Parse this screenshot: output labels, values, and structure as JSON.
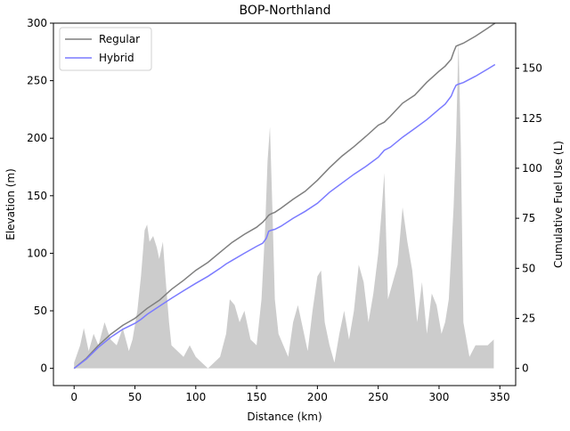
{
  "chart_data": {
    "type": "line",
    "title": "BOP-Northland",
    "xlabel": "Distance (km)",
    "ylabel": "Elevation (m)",
    "y2label": "Cumulative Fuel Use (L)",
    "xlim": [
      -17,
      363
    ],
    "ylim": [
      -15,
      300
    ],
    "y2lim": [
      -8.6,
      172.5
    ],
    "xticks": [
      0,
      50,
      100,
      150,
      200,
      250,
      300,
      350
    ],
    "yticks": [
      0,
      50,
      100,
      150,
      200,
      250,
      300
    ],
    "y2ticks": [
      0,
      25,
      50,
      75,
      100,
      125,
      150
    ],
    "grid": false,
    "legend_position": "top-left",
    "elevation": {
      "color": "#cccccc",
      "x": [
        0,
        5,
        8,
        12,
        16,
        20,
        25,
        30,
        35,
        40,
        45,
        48,
        52,
        55,
        58,
        60,
        62,
        65,
        68,
        70,
        73,
        75,
        78,
        80,
        85,
        90,
        95,
        100,
        105,
        110,
        115,
        120,
        125,
        128,
        132,
        136,
        140,
        145,
        150,
        154,
        157,
        159,
        161,
        163,
        165,
        168,
        172,
        176,
        180,
        184,
        188,
        192,
        196,
        200,
        203,
        206,
        210,
        214,
        218,
        222,
        226,
        230,
        234,
        238,
        242,
        246,
        250,
        253,
        255,
        258,
        262,
        266,
        270,
        274,
        278,
        282,
        286,
        290,
        294,
        298,
        302,
        305,
        308,
        310,
        312,
        314,
        316,
        318,
        320,
        325,
        330,
        335,
        340,
        345
      ],
      "values": [
        5,
        20,
        35,
        15,
        30,
        20,
        40,
        25,
        20,
        35,
        15,
        25,
        50,
        80,
        120,
        125,
        110,
        115,
        105,
        95,
        110,
        80,
        40,
        20,
        15,
        10,
        20,
        10,
        5,
        0,
        5,
        10,
        30,
        60,
        55,
        40,
        50,
        25,
        20,
        60,
        120,
        180,
        210,
        140,
        60,
        30,
        20,
        10,
        40,
        55,
        35,
        15,
        50,
        80,
        85,
        40,
        20,
        5,
        30,
        50,
        25,
        50,
        90,
        75,
        40,
        65,
        100,
        140,
        170,
        60,
        75,
        90,
        140,
        110,
        85,
        40,
        75,
        30,
        65,
        55,
        30,
        40,
        60,
        100,
        140,
        200,
        285,
        190,
        40,
        10,
        20,
        20,
        20,
        25
      ]
    },
    "x": [
      0,
      10,
      20,
      30,
      40,
      50,
      55,
      60,
      70,
      80,
      90,
      100,
      110,
      120,
      125,
      130,
      140,
      150,
      155,
      158,
      160,
      162,
      165,
      170,
      180,
      190,
      200,
      210,
      220,
      230,
      240,
      250,
      255,
      260,
      270,
      280,
      290,
      300,
      305,
      310,
      312,
      314,
      316,
      320,
      330,
      340,
      346
    ],
    "series": [
      {
        "name": "Regular",
        "color": "#7f7f7f",
        "values": [
          0,
          5,
          11.5,
          17,
          21.5,
          25,
          27.5,
          30,
          34,
          39.5,
          44,
          49,
          53,
          58,
          60.5,
          63,
          67,
          70.5,
          73,
          75,
          76.5,
          77.3,
          78,
          80,
          84.5,
          88.5,
          94,
          100.3,
          106,
          110.8,
          116,
          121.5,
          123,
          126,
          132.5,
          136.5,
          143,
          148.5,
          151,
          154.5,
          158,
          161,
          161.5,
          162.5,
          166,
          170,
          172.5
        ]
      },
      {
        "name": "Hybrid",
        "color": "#7b7bff",
        "values": [
          0,
          4.6,
          10.5,
          15.5,
          19.5,
          22.5,
          24.5,
          27,
          31,
          35,
          38.8,
          42.5,
          46,
          50,
          52.2,
          54,
          57.5,
          61,
          62.5,
          65,
          68.5,
          69,
          69.5,
          71,
          75,
          78.5,
          82.5,
          88,
          92.5,
          97,
          101,
          105.5,
          109,
          110.5,
          115.5,
          119.8,
          124.3,
          129.5,
          132,
          136,
          139,
          141.5,
          142,
          142.8,
          146,
          149.6,
          151.8
        ]
      }
    ]
  }
}
